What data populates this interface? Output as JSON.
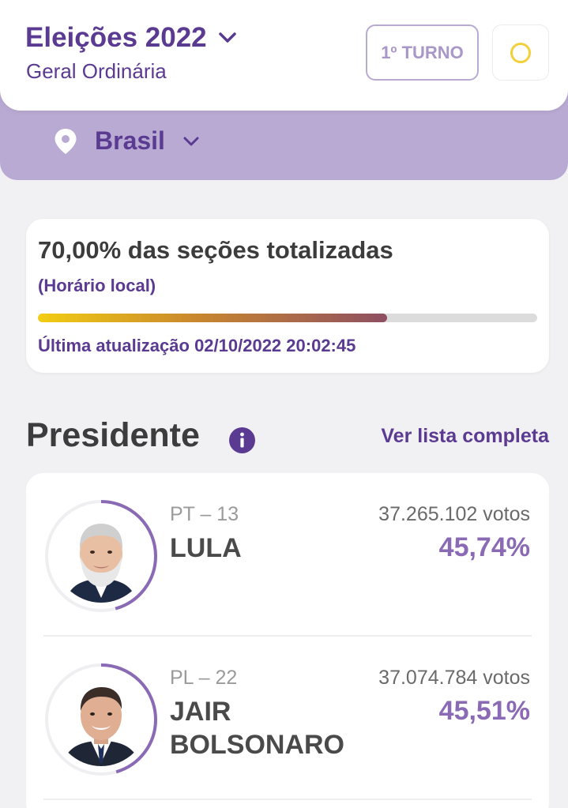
{
  "header": {
    "title": "Eleições 2022",
    "subtitle": "Geral Ordinária",
    "turno_label": "1º TURNO",
    "theme_icon": "circle-icon"
  },
  "location": {
    "name": "Brasil",
    "icon": "map-pin-icon"
  },
  "progress": {
    "title": "70,00% das seções totalizadas",
    "local_label": "(Horário local)",
    "percent": 70,
    "last_update": "Última atualização 02/10/2022 20:02:45"
  },
  "section": {
    "title": "Presidente",
    "link": "Ver lista completa"
  },
  "candidates": [
    {
      "party": "PT – 13",
      "name_line1": "LULA",
      "name_line2": "",
      "votes": "37.265.102 votos",
      "percent": "45,74%",
      "percent_value": 45.74
    },
    {
      "party": "PL – 22",
      "name_line1": "JAIR",
      "name_line2": "BOLSONARO",
      "votes": "37.074.784 votos",
      "percent": "45,51%",
      "percent_value": 45.51
    }
  ],
  "colors": {
    "brand_purple": "#5b3a91",
    "band": "#b9aad3",
    "percent_purple": "#8a6ab5",
    "theme_circle": "#f2cf3b"
  }
}
